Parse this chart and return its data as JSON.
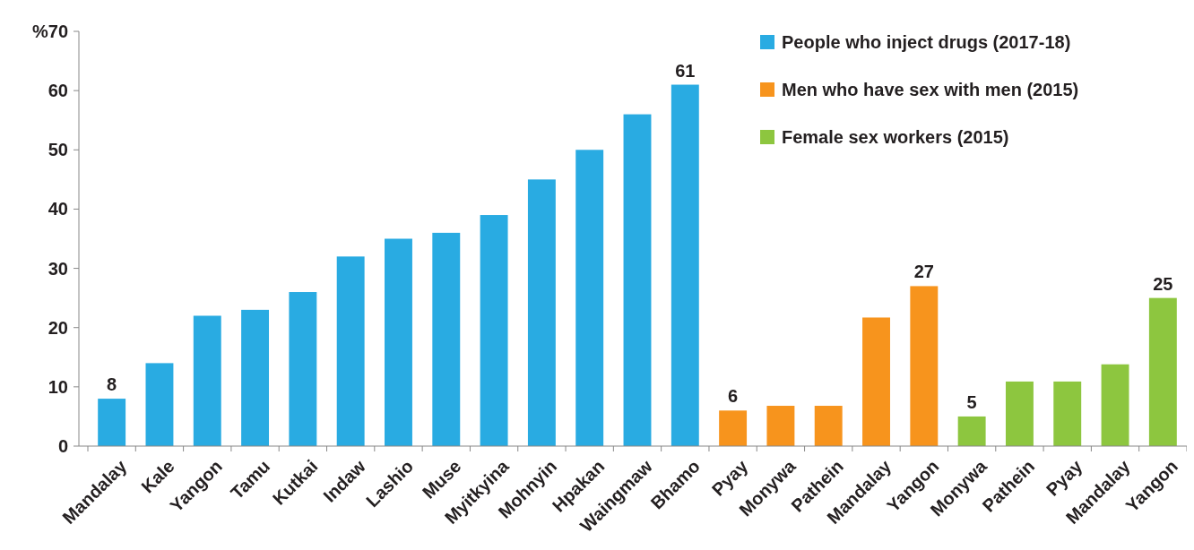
{
  "chart_data": {
    "type": "bar",
    "categories": [
      "Mandalay",
      "Kale",
      "Yangon",
      "Tamu",
      "Kutkai",
      "Indaw",
      "Lashio",
      "Muse",
      "Myitkyina",
      "Mohnyin",
      "Hpakan",
      "Waingmaw",
      "Bhamo",
      "Pyay",
      "Monywa",
      "Pathein",
      "Mandalay",
      "Yangon",
      "Monywa",
      "Pathein",
      "Pyay",
      "Mandalay",
      "Yangon"
    ],
    "series": [
      {
        "name": "People who inject drugs (2017-18)",
        "color": "#29abe2",
        "values": [
          8,
          14,
          22,
          23,
          26,
          32,
          35,
          36,
          39,
          45,
          50,
          56,
          61,
          null,
          null,
          null,
          null,
          null,
          null,
          null,
          null,
          null,
          null
        ],
        "value_labels": [
          "8",
          null,
          null,
          null,
          null,
          null,
          null,
          null,
          null,
          null,
          null,
          null,
          "61",
          null,
          null,
          null,
          null,
          null,
          null,
          null,
          null,
          null,
          null
        ]
      },
      {
        "name": "Men who have sex with men (2015)",
        "color": "#f7941d",
        "values": [
          null,
          null,
          null,
          null,
          null,
          null,
          null,
          null,
          null,
          null,
          null,
          null,
          null,
          6,
          6.8,
          6.8,
          21.7,
          27,
          null,
          null,
          null,
          null,
          null
        ],
        "value_labels": [
          null,
          null,
          null,
          null,
          null,
          null,
          null,
          null,
          null,
          null,
          null,
          null,
          null,
          "6",
          null,
          null,
          null,
          "27",
          null,
          null,
          null,
          null,
          null
        ]
      },
      {
        "name": "Female sex workers (2015)",
        "color": "#8dc63f",
        "values": [
          null,
          null,
          null,
          null,
          null,
          null,
          null,
          null,
          null,
          null,
          null,
          null,
          null,
          null,
          null,
          null,
          null,
          null,
          5,
          10.9,
          10.9,
          13.8,
          25
        ],
        "value_labels": [
          null,
          null,
          null,
          null,
          null,
          null,
          null,
          null,
          null,
          null,
          null,
          null,
          null,
          null,
          null,
          null,
          null,
          null,
          "5",
          null,
          null,
          null,
          "25"
        ]
      }
    ],
    "ylim": [
      0,
      70
    ],
    "yticks": [
      0,
      10,
      20,
      30,
      40,
      50,
      60,
      {
        "value": 70,
        "label": "%70"
      }
    ],
    "legend": "top right"
  }
}
